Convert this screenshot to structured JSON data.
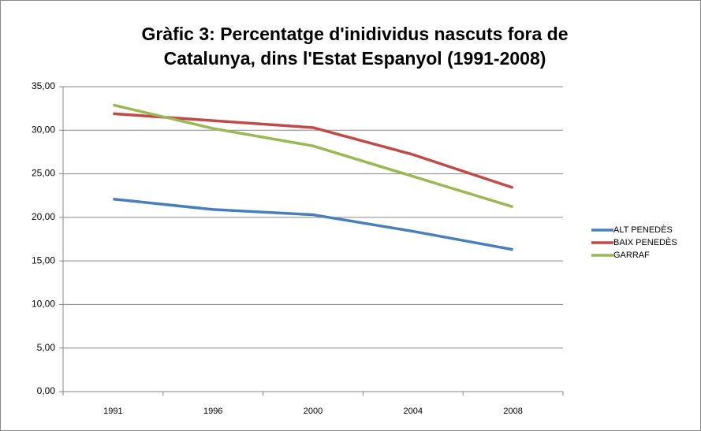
{
  "chart_data": {
    "type": "line",
    "title": [
      "Gràfic 3: Percentatge d'inidividus nascuts fora de",
      "Catalunya, dins l'Estat Espanyol (1991-2008)"
    ],
    "categories": [
      "1991",
      "1996",
      "2000",
      "2004",
      "2008"
    ],
    "series": [
      {
        "name": "ALT PENEDÈS",
        "color": "#4a7ebb",
        "values": [
          22.1,
          20.9,
          20.3,
          18.4,
          16.3
        ]
      },
      {
        "name": "BAIX PENEDÈS",
        "color": "#be4b48",
        "values": [
          31.9,
          31.1,
          30.3,
          27.2,
          23.4
        ]
      },
      {
        "name": "GARRAF",
        "color": "#98b954",
        "values": [
          32.9,
          30.2,
          28.2,
          24.7,
          21.2
        ]
      }
    ],
    "ylim": [
      0,
      35
    ],
    "yticks": [
      {
        "value": 0,
        "label": "0,00"
      },
      {
        "value": 5,
        "label": "5,00"
      },
      {
        "value": 10,
        "label": "10,00"
      },
      {
        "value": 15,
        "label": "15,00"
      },
      {
        "value": 20,
        "label": "20,00"
      },
      {
        "value": 25,
        "label": "25,00"
      },
      {
        "value": 30,
        "label": "30,00"
      },
      {
        "value": 35,
        "label": "35,00"
      }
    ],
    "grid": true,
    "legend": "right"
  }
}
